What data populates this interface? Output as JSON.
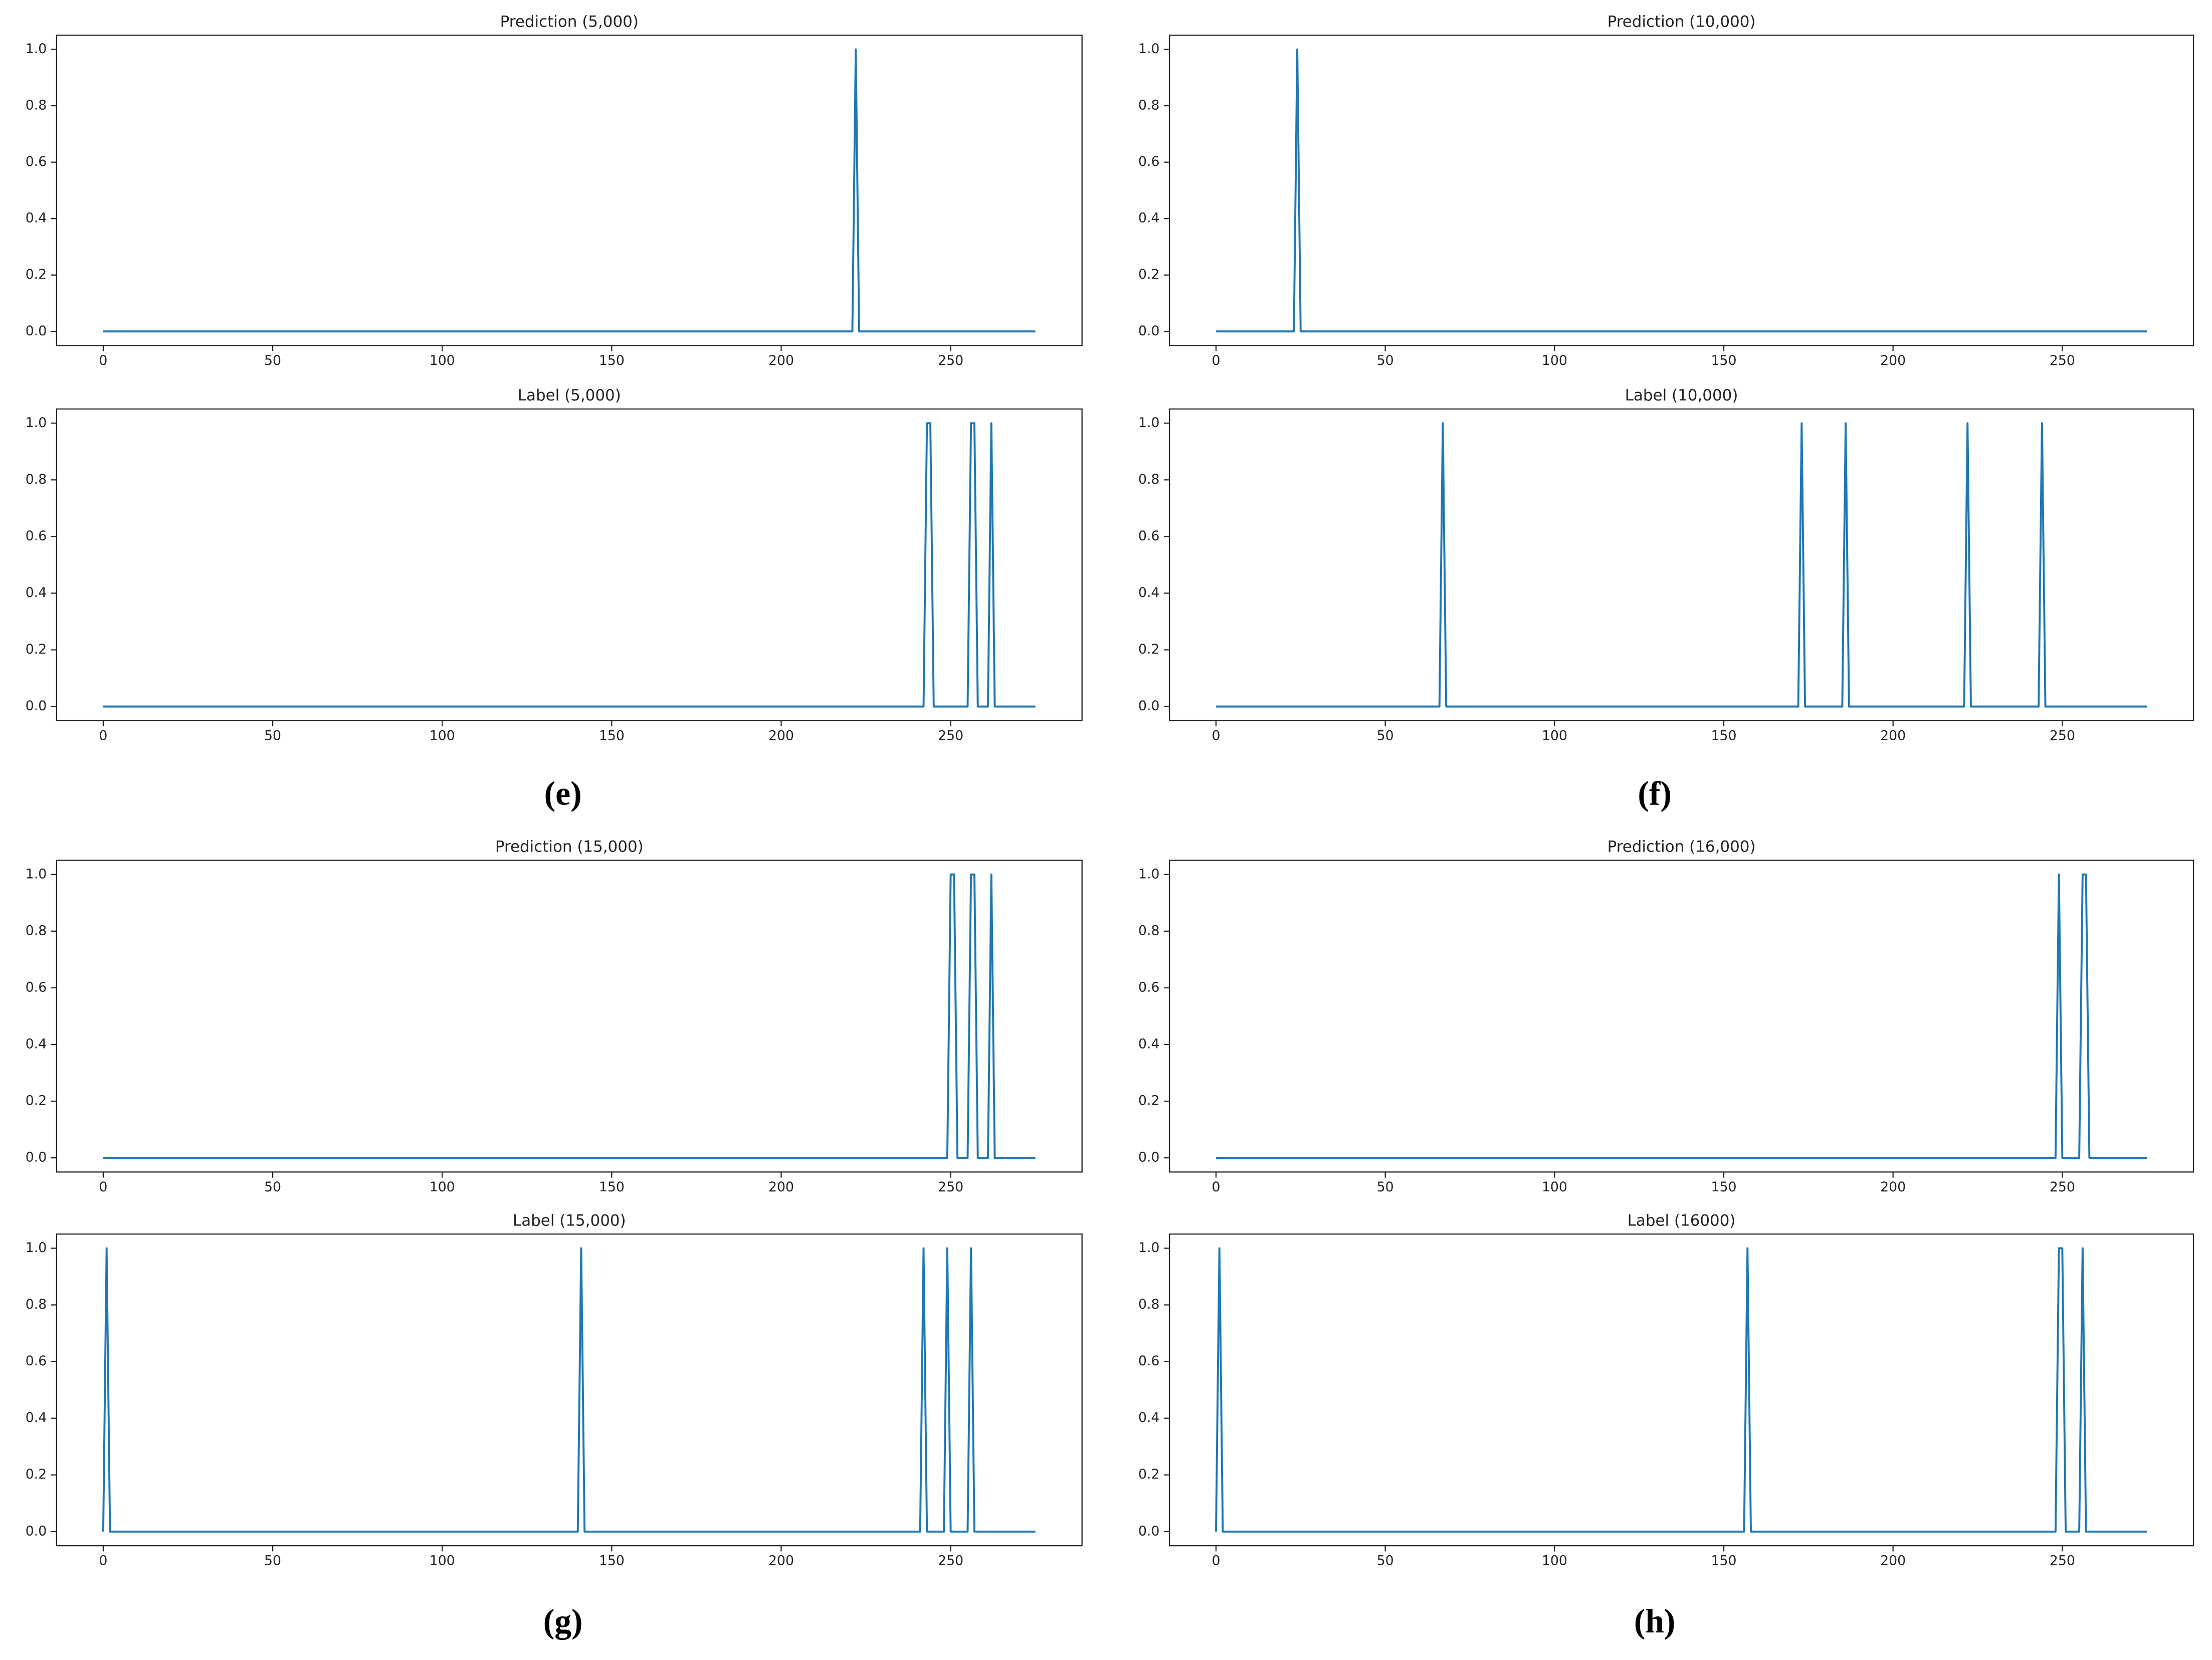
{
  "chart_data": [
    {
      "type": "line",
      "title": "Prediction (5,000)",
      "color": "#1f77b4",
      "x": [
        0,
        221,
        222,
        223,
        275
      ],
      "values": [
        0,
        0,
        1,
        0,
        0
      ],
      "xlim": [
        -13.75,
        288.75
      ],
      "ylim": [
        -0.05,
        1.05
      ],
      "xticks": [
        0,
        50,
        100,
        150,
        200,
        250
      ],
      "yticks": [
        {
          "value": 0,
          "label": "0.0"
        },
        0.2,
        0.4,
        0.6,
        0.8,
        {
          "value": 1,
          "label": "1.0"
        }
      ]
    },
    {
      "type": "line",
      "title": "Label (5,000)",
      "color": "#1f77b4",
      "x": [
        0,
        242,
        243,
        244,
        245,
        255,
        256,
        257,
        258,
        261,
        262,
        263,
        275
      ],
      "values": [
        0,
        0,
        1,
        1,
        0,
        0,
        1,
        1,
        0,
        0,
        1,
        0,
        0
      ],
      "xlim": [
        -13.75,
        288.75
      ],
      "ylim": [
        -0.05,
        1.05
      ],
      "xticks": [
        0,
        50,
        100,
        150,
        200,
        250
      ],
      "yticks": [
        {
          "value": 0,
          "label": "0.0"
        },
        0.2,
        0.4,
        0.6,
        0.8,
        {
          "value": 1,
          "label": "1.0"
        }
      ]
    },
    {
      "type": "line",
      "title": "Prediction (10,000)",
      "color": "#1f77b4",
      "x": [
        0,
        23,
        24,
        25,
        275
      ],
      "values": [
        0,
        0,
        1,
        0,
        0
      ],
      "xlim": [
        -13.75,
        288.75
      ],
      "ylim": [
        -0.05,
        1.05
      ],
      "xticks": [
        0,
        50,
        100,
        150,
        200,
        250
      ],
      "yticks": [
        {
          "value": 0,
          "label": "0.0"
        },
        0.2,
        0.4,
        0.6,
        0.8,
        {
          "value": 1,
          "label": "1.0"
        }
      ]
    },
    {
      "type": "line",
      "title": "Label (10,000)",
      "color": "#1f77b4",
      "x": [
        0,
        66,
        67,
        68,
        172,
        173,
        174,
        185,
        186,
        187,
        221,
        222,
        223,
        243,
        244,
        245,
        275
      ],
      "values": [
        0,
        0,
        1,
        0,
        0,
        1,
        0,
        0,
        1,
        0,
        0,
        1,
        0,
        0,
        1,
        0,
        0
      ],
      "xlim": [
        -13.75,
        288.75
      ],
      "ylim": [
        -0.05,
        1.05
      ],
      "xticks": [
        0,
        50,
        100,
        150,
        200,
        250
      ],
      "yticks": [
        {
          "value": 0,
          "label": "0.0"
        },
        0.2,
        0.4,
        0.6,
        0.8,
        {
          "value": 1,
          "label": "1.0"
        }
      ]
    },
    {
      "type": "line",
      "title": "Prediction (15,000)",
      "color": "#1f77b4",
      "x": [
        0,
        249,
        250,
        251,
        252,
        255,
        256,
        257,
        258,
        261,
        262,
        263,
        275
      ],
      "values": [
        0,
        0,
        1,
        1,
        0,
        0,
        1,
        1,
        0,
        0,
        1,
        0,
        0
      ],
      "xlim": [
        -13.75,
        288.75
      ],
      "ylim": [
        -0.05,
        1.05
      ],
      "xticks": [
        0,
        50,
        100,
        150,
        200,
        250
      ],
      "yticks": [
        {
          "value": 0,
          "label": "0.0"
        },
        0.2,
        0.4,
        0.6,
        0.8,
        {
          "value": 1,
          "label": "1.0"
        }
      ]
    },
    {
      "type": "line",
      "title": "Prediction (16,000)",
      "color": "#1f77b4",
      "x": [
        0,
        248,
        249,
        250,
        255,
        256,
        257,
        258,
        275
      ],
      "values": [
        0,
        0,
        1,
        0,
        0,
        1,
        1,
        0,
        0
      ],
      "xlim": [
        -13.75,
        288.75
      ],
      "ylim": [
        -0.05,
        1.05
      ],
      "xticks": [
        0,
        50,
        100,
        150,
        200,
        250
      ],
      "yticks": [
        {
          "value": 0,
          "label": "0.0"
        },
        0.2,
        0.4,
        0.6,
        0.8,
        {
          "value": 1,
          "label": "1.0"
        }
      ]
    },
    {
      "type": "line",
      "title": "Label (15,000)",
      "color": "#1f77b4",
      "x": [
        0,
        1,
        2,
        140,
        141,
        142,
        241,
        242,
        243,
        248,
        249,
        250,
        255,
        256,
        257,
        275
      ],
      "values": [
        0,
        1,
        0,
        0,
        1,
        0,
        0,
        1,
        0,
        0,
        1,
        0,
        0,
        1,
        0,
        0
      ],
      "xlim": [
        -13.75,
        288.75
      ],
      "ylim": [
        -0.05,
        1.05
      ],
      "xticks": [
        0,
        50,
        100,
        150,
        200,
        250
      ],
      "yticks": [
        {
          "value": 0,
          "label": "0.0"
        },
        0.2,
        0.4,
        0.6,
        0.8,
        {
          "value": 1,
          "label": "1.0"
        }
      ]
    },
    {
      "type": "line",
      "title": "Label (16000)",
      "color": "#1f77b4",
      "x": [
        0,
        1,
        2,
        156,
        157,
        158,
        248,
        249,
        250,
        251,
        255,
        256,
        257,
        275
      ],
      "values": [
        0,
        1,
        0,
        0,
        1,
        0,
        0,
        1,
        1,
        0,
        0,
        1,
        0,
        0
      ],
      "xlim": [
        -13.75,
        288.75
      ],
      "ylim": [
        -0.05,
        1.05
      ],
      "xticks": [
        0,
        50,
        100,
        150,
        200,
        250
      ],
      "yticks": [
        {
          "value": 0,
          "label": "0.0"
        },
        0.2,
        0.4,
        0.6,
        0.8,
        {
          "value": 1,
          "label": "1.0"
        }
      ]
    }
  ],
  "captions": [
    "(e)",
    "(f)",
    "(g)",
    "(h)"
  ]
}
